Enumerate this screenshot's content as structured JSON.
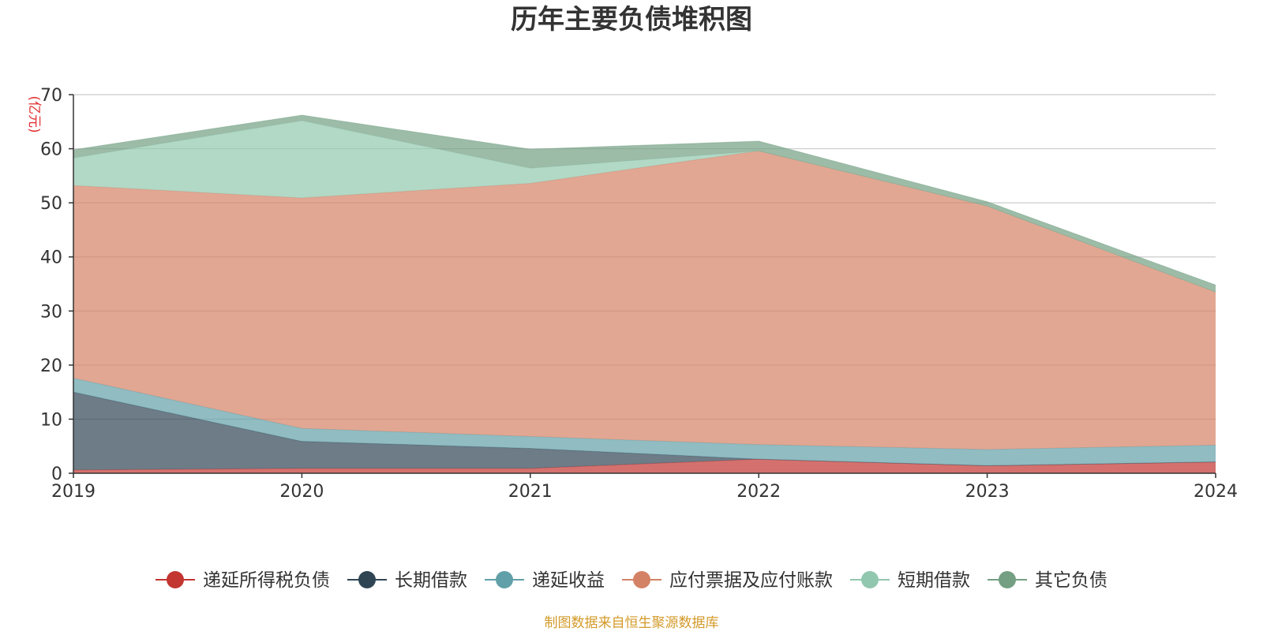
{
  "chart_data": {
    "type": "area",
    "stacked": true,
    "title": "历年主要负债堆积图",
    "ylabel": "(亿元)",
    "xlabel": "",
    "categories": [
      "2019",
      "2020",
      "2021",
      "2022",
      "2023",
      "2024"
    ],
    "ylim": [
      0,
      70
    ],
    "yticks": [
      0,
      10,
      20,
      30,
      40,
      50,
      60,
      70
    ],
    "grid": true,
    "legend_position": "bottom",
    "series": [
      {
        "name": "递延所得税负债",
        "color": "#c23531",
        "values": [
          0.6,
          0.9,
          0.9,
          2.6,
          1.4,
          2.1
        ]
      },
      {
        "name": "长期借款",
        "color": "#2f4554",
        "values": [
          14.4,
          5.0,
          3.7,
          0,
          0,
          0
        ]
      },
      {
        "name": "递延收益",
        "color": "#61a0a8",
        "values": [
          2.6,
          2.4,
          2.2,
          2.7,
          3.0,
          3.1
        ]
      },
      {
        "name": "应付票据及应付账款",
        "color": "#d48265",
        "values": [
          35.6,
          42.6,
          46.8,
          54.3,
          45.0,
          28.3
        ]
      },
      {
        "name": "短期借款",
        "color": "#91c7ae",
        "values": [
          5.1,
          14.3,
          2.8,
          0,
          0,
          0
        ]
      },
      {
        "name": "其它负债",
        "color": "#749f83",
        "values": [
          1.5,
          1.0,
          3.5,
          1.8,
          0.8,
          1.3
        ]
      }
    ]
  },
  "source_note": "制图数据来自恒生聚源数据库"
}
